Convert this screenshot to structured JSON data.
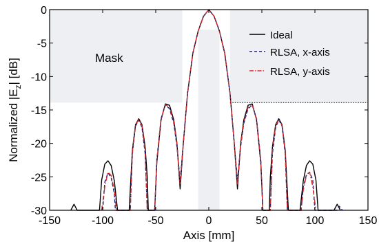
{
  "chart_data": {
    "type": "line",
    "xlabel": "Axis [mm]",
    "ylabel": "Normalized |E",
    "ylabel_sub": "z",
    "ylabel_suffix": "| [dB]",
    "xlim": [
      -150,
      150
    ],
    "ylim": [
      -30,
      0
    ],
    "x_ticks": [
      "-150",
      "-100",
      "-50",
      "0",
      "50",
      "100",
      "150"
    ],
    "y_ticks": [
      "0",
      "-5",
      "-10",
      "-15",
      "-20",
      "-25",
      "-30"
    ],
    "grid": false,
    "legend_position": "top-right",
    "mask": {
      "label": "Mask",
      "color": "#eeeff2",
      "threshold_db": -13.9,
      "regions": [
        {
          "x": [
            -150,
            -25
          ],
          "y": [
            -13.9,
            0
          ]
        },
        {
          "x": [
            -10,
            10
          ],
          "y": [
            -30,
            -3
          ]
        },
        {
          "x": [
            20,
            150
          ],
          "y": [
            -13.9,
            0
          ]
        }
      ],
      "dotted_line": {
        "x": [
          20,
          150
        ],
        "y": -13.9
      }
    },
    "series": [
      {
        "name": "Ideal",
        "color": "#000000",
        "style": "solid",
        "points": [
          [
            -130,
            -30
          ],
          [
            -127,
            -29.1
          ],
          [
            -124,
            -30
          ],
          [
            -103,
            -30
          ],
          [
            -101,
            -25.5
          ],
          [
            -98,
            -23.1
          ],
          [
            -95,
            -22.6
          ],
          [
            -92,
            -23.3
          ],
          [
            -89,
            -25.6
          ],
          [
            -86,
            -30
          ],
          [
            -75,
            -30
          ],
          [
            -72,
            -21
          ],
          [
            -69,
            -17.2
          ],
          [
            -66,
            -16.3
          ],
          [
            -63,
            -17.2
          ],
          [
            -60,
            -20.5
          ],
          [
            -58,
            -25
          ],
          [
            -57,
            -30
          ],
          [
            -51,
            -30
          ],
          [
            -49,
            -23
          ],
          [
            -45,
            -16.5
          ],
          [
            -41,
            -14.1
          ],
          [
            -37,
            -14.3
          ],
          [
            -33,
            -16.5
          ],
          [
            -30,
            -20
          ],
          [
            -27,
            -26.8
          ],
          [
            -24,
            -20
          ],
          [
            -20,
            -12.5
          ],
          [
            -15,
            -6.5
          ],
          [
            -10,
            -3.2
          ],
          [
            -5,
            -1
          ],
          [
            0,
            0
          ],
          [
            5,
            -1
          ],
          [
            10,
            -3.2
          ],
          [
            15,
            -6.5
          ],
          [
            20,
            -12.5
          ],
          [
            24,
            -20
          ],
          [
            27,
            -26.8
          ],
          [
            30,
            -20
          ],
          [
            33,
            -16.5
          ],
          [
            37,
            -14.3
          ],
          [
            41,
            -14.1
          ],
          [
            45,
            -16.5
          ],
          [
            49,
            -23
          ],
          [
            51,
            -30
          ],
          [
            57,
            -30
          ],
          [
            58,
            -25
          ],
          [
            60,
            -20.5
          ],
          [
            63,
            -17.2
          ],
          [
            66,
            -16.3
          ],
          [
            69,
            -17.2
          ],
          [
            72,
            -21
          ],
          [
            75,
            -30
          ],
          [
            86,
            -30
          ],
          [
            89,
            -25.6
          ],
          [
            92,
            -23.3
          ],
          [
            95,
            -22.6
          ],
          [
            98,
            -23.1
          ],
          [
            101,
            -25.5
          ],
          [
            103,
            -30
          ],
          [
            118,
            -30
          ],
          [
            121,
            -29.1
          ],
          [
            124,
            -30
          ]
        ]
      },
      {
        "name": "RLSA, x-axis",
        "color": "#1a237e",
        "style": "dashed",
        "points": [
          [
            -100,
            -30
          ],
          [
            -98,
            -25.8
          ],
          [
            -95,
            -24.4
          ],
          [
            -92,
            -25.1
          ],
          [
            -89,
            -27.5
          ],
          [
            -88,
            -30
          ],
          [
            -74,
            -30
          ],
          [
            -72,
            -21.5
          ],
          [
            -69,
            -17.4
          ],
          [
            -66,
            -16.5
          ],
          [
            -63,
            -17.6
          ],
          [
            -60,
            -21.5
          ],
          [
            -58,
            -30
          ],
          [
            -51,
            -30
          ],
          [
            -49,
            -22.5
          ],
          [
            -45,
            -16.3
          ],
          [
            -41,
            -14.3
          ],
          [
            -37,
            -14.8
          ],
          [
            -33,
            -17
          ],
          [
            -30,
            -20.5
          ],
          [
            -27,
            -25.6
          ],
          [
            -24,
            -20
          ],
          [
            -20,
            -12.5
          ],
          [
            -15,
            -6.5
          ],
          [
            -10,
            -3.2
          ],
          [
            -5,
            -1
          ],
          [
            0,
            0
          ],
          [
            5,
            -1
          ],
          [
            10,
            -3.2
          ],
          [
            15,
            -6.5
          ],
          [
            20,
            -12.5
          ],
          [
            24,
            -20
          ],
          [
            27,
            -25.6
          ],
          [
            30,
            -20.5
          ],
          [
            33,
            -17
          ],
          [
            37,
            -14.8
          ],
          [
            41,
            -14.3
          ],
          [
            45,
            -16.3
          ],
          [
            49,
            -22.5
          ],
          [
            51,
            -30
          ],
          [
            58,
            -30
          ],
          [
            60,
            -21.5
          ],
          [
            63,
            -17.6
          ],
          [
            66,
            -16.5
          ],
          [
            69,
            -17.4
          ],
          [
            72,
            -21.5
          ],
          [
            74,
            -30
          ],
          [
            87,
            -30
          ],
          [
            89,
            -26.5
          ],
          [
            92,
            -24.7
          ],
          [
            95,
            -24.3
          ],
          [
            98,
            -25.5
          ],
          [
            100,
            -30
          ],
          [
            121,
            -30
          ],
          [
            123,
            -29.4
          ],
          [
            126,
            -30
          ]
        ]
      },
      {
        "name": "RLSA, y-axis",
        "color": "#d62828",
        "style": "dashdot",
        "points": [
          [
            -101,
            -30
          ],
          [
            -98,
            -26.5
          ],
          [
            -95,
            -24.3
          ],
          [
            -92,
            -24.8
          ],
          [
            -89,
            -27
          ],
          [
            -87,
            -30
          ],
          [
            -74,
            -30
          ],
          [
            -72,
            -21.3
          ],
          [
            -69,
            -17.3
          ],
          [
            -66,
            -16.4
          ],
          [
            -63,
            -17.4
          ],
          [
            -60,
            -21
          ],
          [
            -58,
            -30
          ],
          [
            -51,
            -30
          ],
          [
            -49,
            -22.8
          ],
          [
            -45,
            -16.4
          ],
          [
            -41,
            -14.2
          ],
          [
            -37,
            -14.6
          ],
          [
            -33,
            -16.8
          ],
          [
            -30,
            -20.2
          ],
          [
            -27,
            -26.2
          ],
          [
            -24,
            -20
          ],
          [
            -20,
            -12.5
          ],
          [
            -15,
            -6.5
          ],
          [
            -10,
            -3.2
          ],
          [
            -5,
            -1
          ],
          [
            0,
            0
          ],
          [
            5,
            -1
          ],
          [
            10,
            -3.2
          ],
          [
            15,
            -6.5
          ],
          [
            20,
            -12.5
          ],
          [
            24,
            -20
          ],
          [
            27,
            -26.2
          ],
          [
            30,
            -20.2
          ],
          [
            33,
            -16.8
          ],
          [
            37,
            -14.6
          ],
          [
            41,
            -14.2
          ],
          [
            45,
            -16.4
          ],
          [
            49,
            -22.8
          ],
          [
            51,
            -30
          ],
          [
            58,
            -30
          ],
          [
            60,
            -21
          ],
          [
            63,
            -17.4
          ],
          [
            66,
            -16.4
          ],
          [
            69,
            -17.3
          ],
          [
            72,
            -21.3
          ],
          [
            74,
            -30
          ],
          [
            87,
            -30
          ],
          [
            89,
            -27
          ],
          [
            92,
            -24.8
          ],
          [
            95,
            -24.3
          ],
          [
            98,
            -26.5
          ],
          [
            101,
            -30
          ]
        ]
      }
    ]
  }
}
